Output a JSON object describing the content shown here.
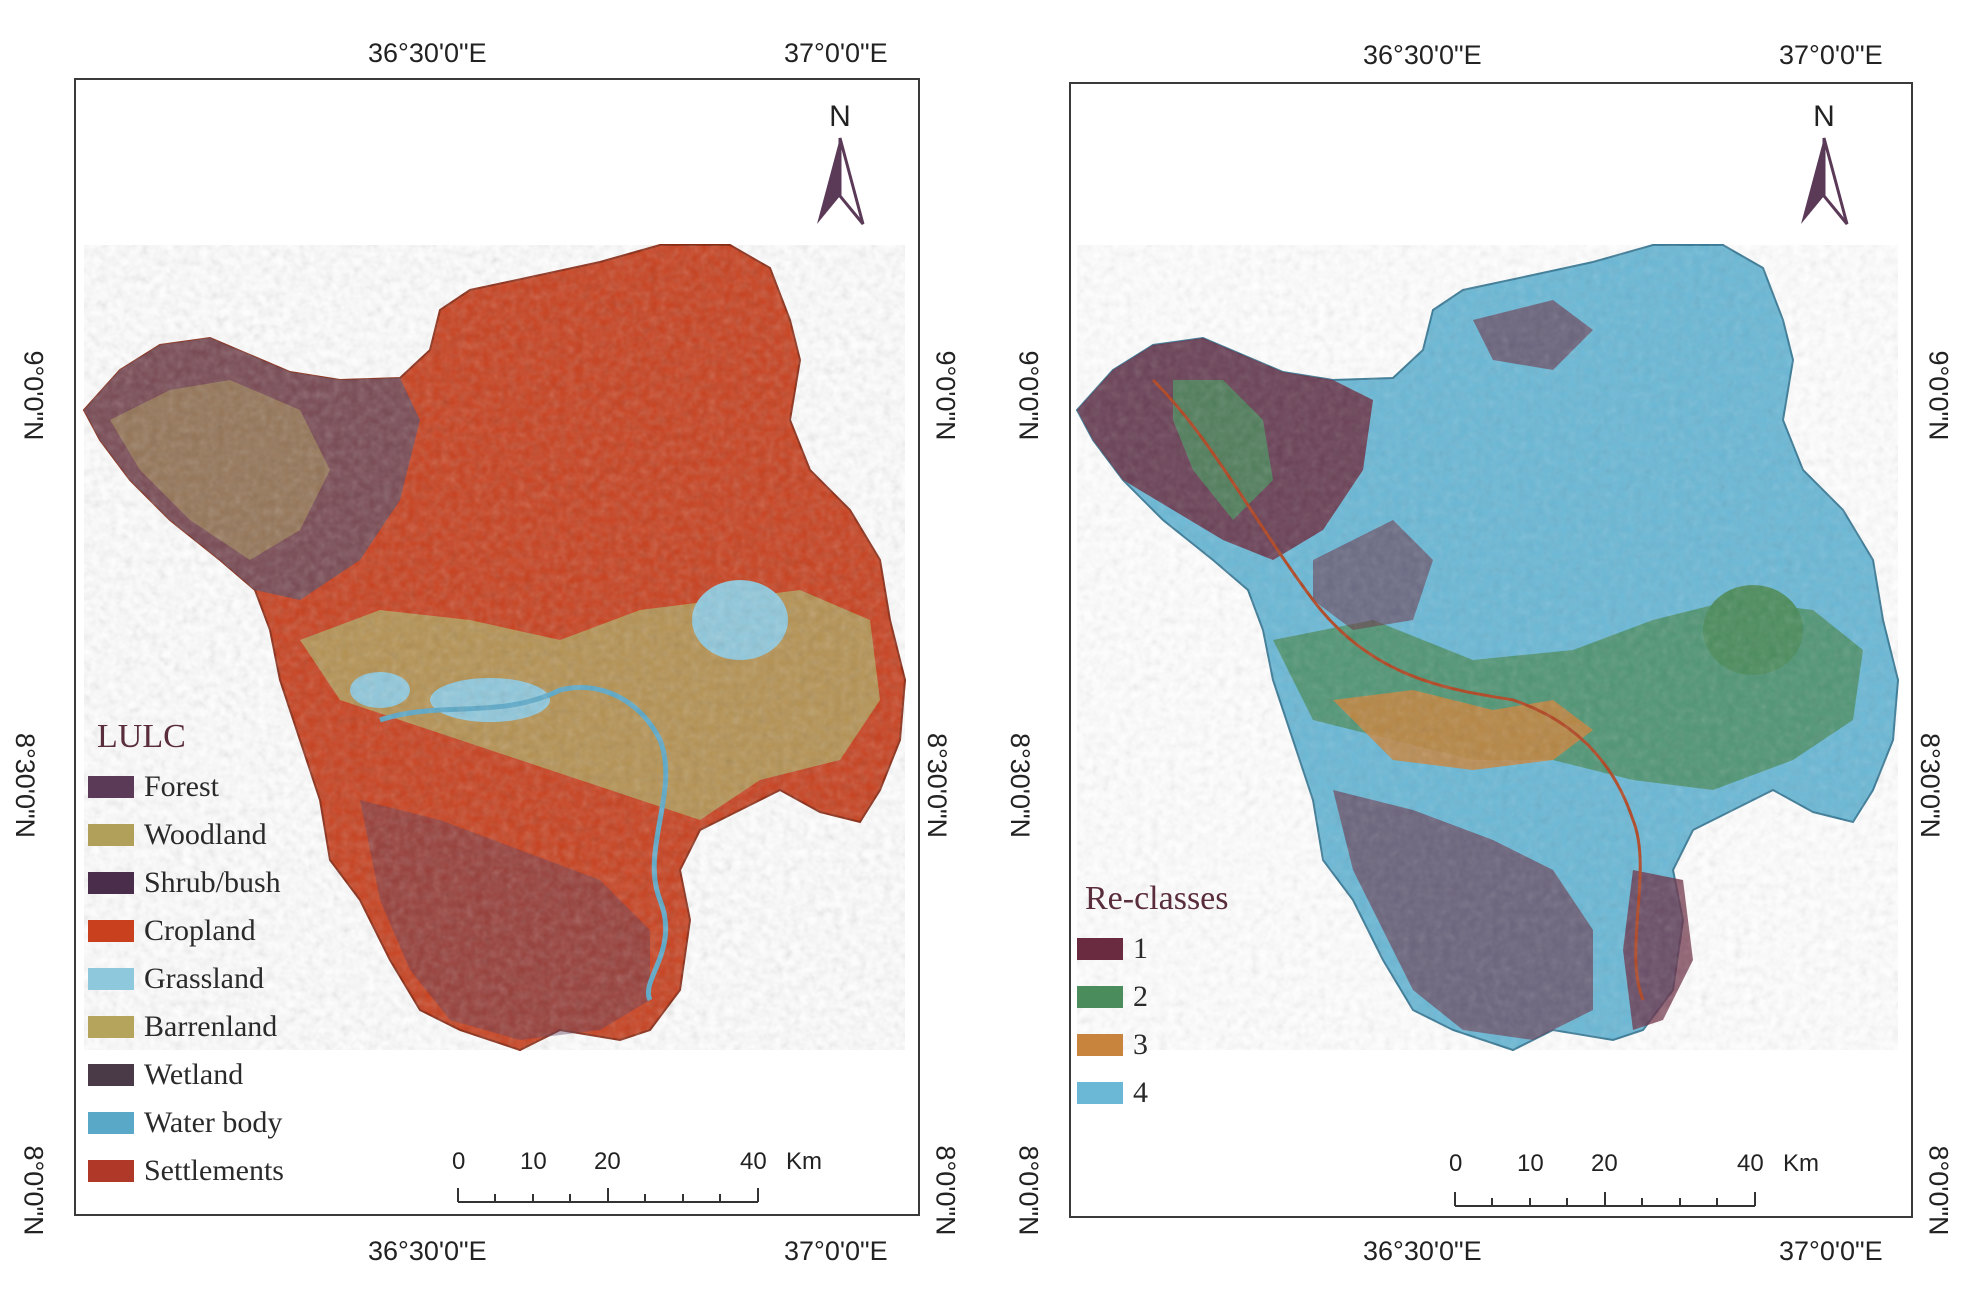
{
  "maps": [
    {
      "legend_title": "LULC",
      "legend": [
        {
          "label": "Forest",
          "color": "#5b3a58"
        },
        {
          "label": "Woodland",
          "color": "#b0a05a"
        },
        {
          "label": "Shrub/bush",
          "color": "#4a2d4a"
        },
        {
          "label": "Cropland",
          "color": "#c8401e"
        },
        {
          "label": "Grassland",
          "color": "#8ec8dc"
        },
        {
          "label": "Barrenland",
          "color": "#b5a45c"
        },
        {
          "label": "Wetland",
          "color": "#4a3a48"
        },
        {
          "label": "Water body",
          "color": "#5aa8c8"
        },
        {
          "label": "Settlements",
          "color": "#b03828"
        }
      ]
    },
    {
      "legend_title": "Re-classes",
      "legend": [
        {
          "label": "1",
          "color": "#6a2a40"
        },
        {
          "label": "2",
          "color": "#4a8c5c"
        },
        {
          "label": "3",
          "color": "#c8843c"
        },
        {
          "label": "4",
          "color": "#6ab8d6"
        }
      ]
    }
  ],
  "coords": {
    "lon_left": "36°30'0\"E",
    "lon_right": "37°0'0\"E",
    "lat_top": "9°0'0\"N",
    "lat_mid": "8°30'0\"N",
    "lat_bottom": "8°0'0\"N"
  },
  "north_label": "N",
  "scale": {
    "labels": [
      "0",
      "10",
      "20",
      "40"
    ],
    "unit": "Km"
  }
}
